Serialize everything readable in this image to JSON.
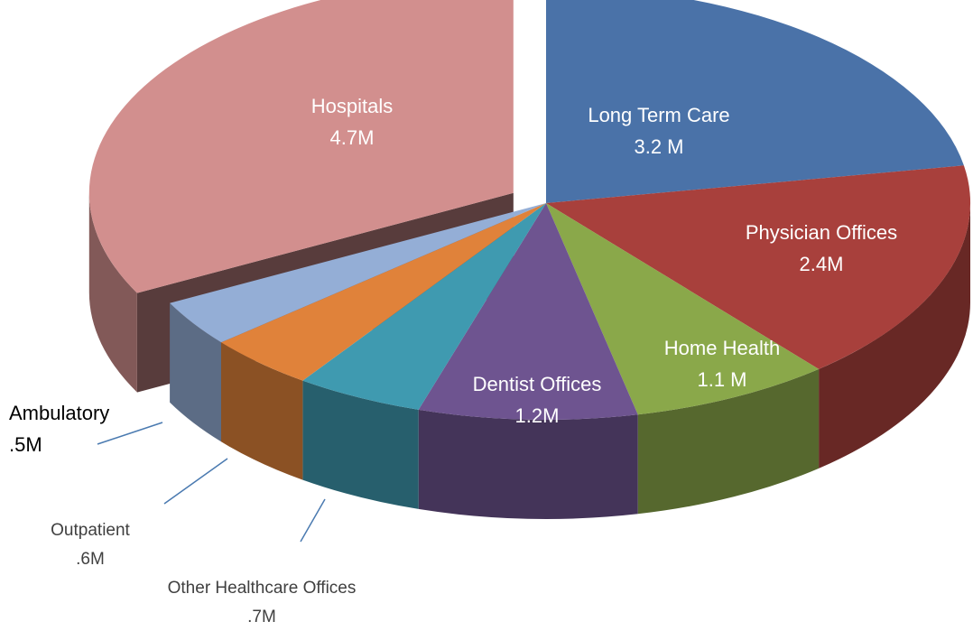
{
  "chart_data": {
    "type": "pie",
    "categories": [
      "Long Term Care",
      "Physician Offices",
      "Home Health",
      "Dentist Offices",
      "Other Healthcare Offices",
      "Outpatient",
      "Ambulatory",
      "Hospitals"
    ],
    "values": [
      3.2,
      2.4,
      1.1,
      1.2,
      0.7,
      0.6,
      0.5,
      4.7
    ],
    "value_labels": [
      "3.2 M",
      "2.4M",
      "1.1 M",
      "1.2M",
      ".7M",
      ".6M",
      ".5M",
      "4.7M"
    ],
    "colors": [
      "#4a72a8",
      "#a8403c",
      "#8aa84a",
      "#6e5490",
      "#3f9ab0",
      "#e0823a",
      "#94aed6",
      "#d28f8e"
    ],
    "exploded": "Hospitals"
  }
}
